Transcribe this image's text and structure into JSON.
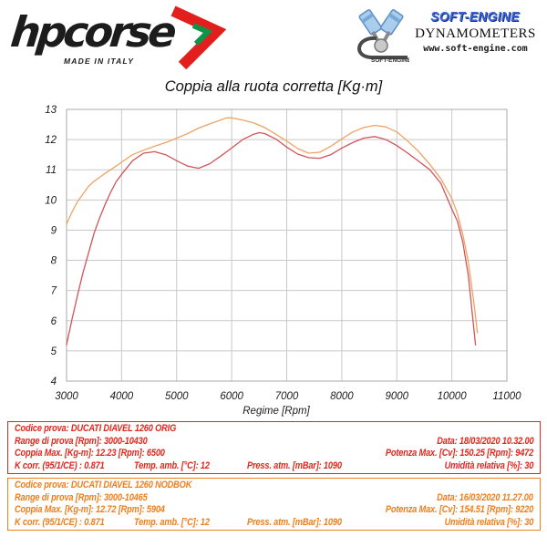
{
  "header": {
    "hpcorse": {
      "brand": "hpcorse",
      "tagline": "MADE IN ITALY",
      "arrow_red": "#e31f1d",
      "arrow_green": "#0f9447"
    },
    "softengine": {
      "name": "SOFT-ENGINE",
      "subtitle": "DYNAMOMETERS",
      "website": "www.soft-engine.com",
      "icon_label": "SOFT-ENGINE"
    }
  },
  "chart_data": {
    "type": "line",
    "title": "Coppia alla ruota corretta [Kg·m]",
    "xlabel": "Regime [Rpm]",
    "ylabel": "",
    "xlim": [
      3000,
      11000
    ],
    "ylim": [
      4,
      13
    ],
    "x_ticks": [
      3000,
      4000,
      5000,
      6000,
      7000,
      8000,
      9000,
      10000,
      11000
    ],
    "y_ticks": [
      4,
      5,
      6,
      7,
      8,
      9,
      10,
      11,
      12,
      13
    ],
    "grid": true,
    "legend": "none",
    "series": [
      {
        "name": "DUCATI DIAVEL 1260 ORIG",
        "color": "#d0545c",
        "points": [
          [
            3000,
            5.2
          ],
          [
            3100,
            6.05
          ],
          [
            3200,
            6.85
          ],
          [
            3300,
            7.6
          ],
          [
            3400,
            8.25
          ],
          [
            3500,
            8.9
          ],
          [
            3600,
            9.4
          ],
          [
            3700,
            9.85
          ],
          [
            3800,
            10.25
          ],
          [
            3900,
            10.6
          ],
          [
            4000,
            10.85
          ],
          [
            4200,
            11.3
          ],
          [
            4400,
            11.55
          ],
          [
            4600,
            11.6
          ],
          [
            4800,
            11.5
          ],
          [
            5000,
            11.3
          ],
          [
            5200,
            11.12
          ],
          [
            5400,
            11.05
          ],
          [
            5600,
            11.2
          ],
          [
            5800,
            11.45
          ],
          [
            6000,
            11.72
          ],
          [
            6200,
            12.0
          ],
          [
            6400,
            12.18
          ],
          [
            6500,
            12.23
          ],
          [
            6600,
            12.2
          ],
          [
            6800,
            12.02
          ],
          [
            7000,
            11.75
          ],
          [
            7200,
            11.52
          ],
          [
            7400,
            11.4
          ],
          [
            7600,
            11.38
          ],
          [
            7800,
            11.5
          ],
          [
            8000,
            11.72
          ],
          [
            8200,
            11.9
          ],
          [
            8400,
            12.05
          ],
          [
            8600,
            12.1
          ],
          [
            8800,
            12.0
          ],
          [
            9000,
            11.8
          ],
          [
            9200,
            11.55
          ],
          [
            9400,
            11.28
          ],
          [
            9600,
            11.0
          ],
          [
            9800,
            10.55
          ],
          [
            10000,
            9.7
          ],
          [
            10100,
            9.3
          ],
          [
            10200,
            8.6
          ],
          [
            10300,
            7.5
          ],
          [
            10430,
            5.2
          ]
        ]
      },
      {
        "name": "DUCATI DIAVEL 1260 NODBOK",
        "color": "#eda463",
        "points": [
          [
            3000,
            9.2
          ],
          [
            3100,
            9.6
          ],
          [
            3200,
            9.95
          ],
          [
            3300,
            10.2
          ],
          [
            3400,
            10.45
          ],
          [
            3500,
            10.62
          ],
          [
            3600,
            10.75
          ],
          [
            3700,
            10.88
          ],
          [
            3800,
            11.0
          ],
          [
            3900,
            11.12
          ],
          [
            4000,
            11.25
          ],
          [
            4200,
            11.5
          ],
          [
            4400,
            11.65
          ],
          [
            4600,
            11.78
          ],
          [
            4800,
            11.9
          ],
          [
            5000,
            12.05
          ],
          [
            5200,
            12.2
          ],
          [
            5400,
            12.38
          ],
          [
            5600,
            12.52
          ],
          [
            5800,
            12.65
          ],
          [
            5904,
            12.72
          ],
          [
            6000,
            12.72
          ],
          [
            6200,
            12.65
          ],
          [
            6400,
            12.55
          ],
          [
            6600,
            12.4
          ],
          [
            6800,
            12.18
          ],
          [
            7000,
            11.95
          ],
          [
            7200,
            11.7
          ],
          [
            7400,
            11.55
          ],
          [
            7600,
            11.58
          ],
          [
            7800,
            11.78
          ],
          [
            8000,
            12.02
          ],
          [
            8200,
            12.25
          ],
          [
            8400,
            12.4
          ],
          [
            8600,
            12.47
          ],
          [
            8800,
            12.42
          ],
          [
            9000,
            12.25
          ],
          [
            9200,
            11.95
          ],
          [
            9400,
            11.6
          ],
          [
            9600,
            11.18
          ],
          [
            9800,
            10.7
          ],
          [
            10000,
            10.05
          ],
          [
            10100,
            9.55
          ],
          [
            10200,
            8.85
          ],
          [
            10300,
            7.95
          ],
          [
            10400,
            6.6
          ],
          [
            10465,
            5.6
          ]
        ]
      }
    ]
  },
  "tables": [
    {
      "accent": "#e3261d",
      "codice": "Codice prova: DUCATI DIAVEL 1260 ORIG",
      "range": "Range di prova [Rpm]: 3000-10430",
      "data": "Data: 18/03/2020  10.32.00",
      "coppia_max": "Coppia Max. [Kg-m]: 12.23   [Rpm]: 6500",
      "potenza_max": "Potenza Max. [Cv]: 150.25   [Rpm]: 9472",
      "k_corr": "K corr. (95/1/CE) : 0.871",
      "temp": "Temp. amb. [°C]: 12",
      "press": "Press. atm. [mBar]: 1090",
      "umidita": "Umidità relativa [%]: 30"
    },
    {
      "accent": "#ee7f1d",
      "codice": "Codice prova: DUCATI DIAVEL 1260 NODBOK",
      "range": "Range di prova [Rpm]: 3000-10465",
      "data": "Data: 16/03/2020  11.27.00",
      "coppia_max": "Coppia Max. [Kg-m]: 12.72   [Rpm]: 5904",
      "potenza_max": "Potenza Max. [Cv]: 154.51   [Rpm]: 9220",
      "k_corr": "K corr. (95/1/CE) : 0.871",
      "temp": "Temp. amb. [°C]: 12",
      "press": "Press. atm. [mBar]: 1090",
      "umidita": "Umidità relativa [%]: 30"
    }
  ]
}
